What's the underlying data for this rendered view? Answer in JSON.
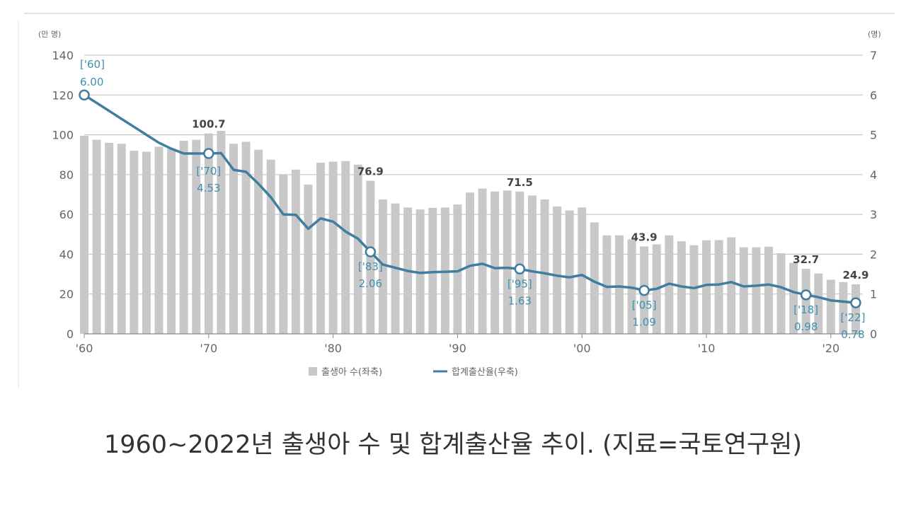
{
  "caption": "1960~2022년 출생아 수 및 합계출산율 추이. (지료=국토연구원)",
  "colors": {
    "bars": "#c8c8c8",
    "line": "#3f7ea0",
    "annotation": "#3f8fb0",
    "grid": "#bdbdbd",
    "text": "#666666"
  },
  "chart_data": {
    "type": "bar",
    "x": [
      1960,
      1961,
      1962,
      1963,
      1964,
      1965,
      1966,
      1967,
      1968,
      1969,
      1970,
      1971,
      1972,
      1973,
      1974,
      1975,
      1976,
      1977,
      1978,
      1979,
      1980,
      1981,
      1982,
      1983,
      1984,
      1985,
      1986,
      1987,
      1988,
      1989,
      1990,
      1991,
      1992,
      1993,
      1994,
      1995,
      1996,
      1997,
      1998,
      1999,
      2000,
      2001,
      2002,
      2003,
      2004,
      2005,
      2006,
      2007,
      2008,
      2009,
      2010,
      2011,
      2012,
      2013,
      2014,
      2015,
      2016,
      2017,
      2018,
      2019,
      2020,
      2021,
      2022
    ],
    "series": [
      {
        "name": "출생아 수(좌축)",
        "type": "bar",
        "axis": "left",
        "values": [
          99.5,
          97.5,
          96,
          95.5,
          92,
          91.5,
          94,
          93,
          97,
          97.5,
          100.7,
          102,
          95.5,
          96.5,
          92.5,
          87.5,
          80,
          82.5,
          75,
          86,
          86.5,
          86.8,
          85,
          76.9,
          67.5,
          65.5,
          63.5,
          62.5,
          63.3,
          63.5,
          65,
          71,
          73,
          71.5,
          72,
          71.5,
          69.5,
          67.5,
          64,
          62,
          63.5,
          56,
          49.5,
          49.5,
          47.5,
          43.9,
          45,
          49.5,
          46.5,
          44.5,
          47,
          47.1,
          48.5,
          43.5,
          43.5,
          43.8,
          40.5,
          35.7,
          32.7,
          30.3,
          27.2,
          26,
          24.9
        ]
      },
      {
        "name": "합계출산율(우축)",
        "type": "line",
        "axis": "right",
        "values": [
          6.0,
          5.8,
          5.6,
          5.4,
          5.2,
          5.0,
          4.8,
          4.65,
          4.53,
          4.53,
          4.53,
          4.54,
          4.12,
          4.07,
          3.77,
          3.43,
          3.0,
          2.99,
          2.64,
          2.9,
          2.82,
          2.57,
          2.39,
          2.06,
          1.74,
          1.66,
          1.58,
          1.53,
          1.55,
          1.56,
          1.57,
          1.71,
          1.76,
          1.65,
          1.66,
          1.63,
          1.57,
          1.52,
          1.46,
          1.42,
          1.48,
          1.31,
          1.18,
          1.19,
          1.16,
          1.09,
          1.13,
          1.26,
          1.19,
          1.15,
          1.23,
          1.24,
          1.3,
          1.19,
          1.21,
          1.24,
          1.17,
          1.05,
          0.98,
          0.92,
          0.84,
          0.81,
          0.78
        ]
      }
    ],
    "left_axis": {
      "unit": "(만 명)",
      "ylim": [
        0,
        140
      ],
      "ticks": [
        "0",
        "20",
        "40",
        "60",
        "80",
        "100",
        "120",
        "140"
      ]
    },
    "right_axis": {
      "unit": "(명)",
      "ylim": [
        0,
        7
      ],
      "ticks": [
        "0",
        "1",
        "2",
        "3",
        "4",
        "5",
        "6",
        "7"
      ]
    },
    "x_ticks": [
      {
        "year": 1960,
        "label": "'60"
      },
      {
        "year": 1970,
        "label": "'70"
      },
      {
        "year": 1980,
        "label": "'80"
      },
      {
        "year": 1990,
        "label": "'90"
      },
      {
        "year": 2000,
        "label": "'00"
      },
      {
        "year": 2010,
        "label": "'10"
      },
      {
        "year": 2020,
        "label": "'20"
      }
    ],
    "bar_labels": [
      {
        "year": 1970,
        "text": "100.7"
      },
      {
        "year": 1983,
        "text": "76.9"
      },
      {
        "year": 1995,
        "text": "71.5"
      },
      {
        "year": 2005,
        "text": "43.9"
      },
      {
        "year": 2018,
        "text": "32.7"
      },
      {
        "year": 2022,
        "text": "24.9"
      }
    ],
    "line_annotations": [
      {
        "year": 1960,
        "year_label": "['60]",
        "value_label": "6.00",
        "value": 6.0
      },
      {
        "year": 1970,
        "year_label": "['70]",
        "value_label": "4.53",
        "value": 4.53
      },
      {
        "year": 1983,
        "year_label": "['83]",
        "value_label": "2.06",
        "value": 2.06
      },
      {
        "year": 1995,
        "year_label": "['95]",
        "value_label": "1.63",
        "value": 1.63
      },
      {
        "year": 2005,
        "year_label": "['05]",
        "value_label": "1.09",
        "value": 1.09
      },
      {
        "year": 2018,
        "year_label": "['18]",
        "value_label": "0.98",
        "value": 0.98
      },
      {
        "year": 2022,
        "year_label": "['22]",
        "value_label": "0.78",
        "value": 0.78
      }
    ],
    "legend": [
      {
        "label": "출생아 수(좌축)",
        "kind": "bar"
      },
      {
        "label": "합계출산율(우축)",
        "kind": "line"
      }
    ],
    "legend_position": "bottom-center",
    "grid": true
  }
}
